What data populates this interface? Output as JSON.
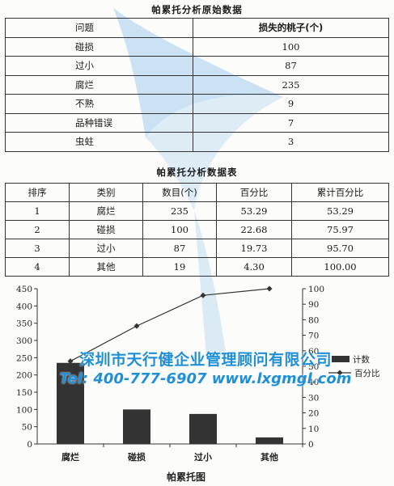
{
  "raw": {
    "title": "帕累托分析原始数据",
    "headers": [
      "问题",
      "损失的桃子(个)"
    ],
    "rows": [
      {
        "problem": "碰损",
        "count": "100"
      },
      {
        "problem": "过小",
        "count": "87"
      },
      {
        "problem": "腐烂",
        "count": "235"
      },
      {
        "problem": "不熟",
        "count": "9"
      },
      {
        "problem": "品种错误",
        "count": "7"
      },
      {
        "problem": "虫蛀",
        "count": "3"
      }
    ]
  },
  "pareto_table": {
    "title": "帕累托分析数据表",
    "headers": [
      "排序",
      "类别",
      "数目(个)",
      "百分比",
      "累计百分比"
    ],
    "rows": [
      [
        "1",
        "腐烂",
        "235",
        "53.29",
        "53.29"
      ],
      [
        "2",
        "碰损",
        "100",
        "22.68",
        "75.97"
      ],
      [
        "3",
        "过小",
        "87",
        "19.73",
        "95.70"
      ],
      [
        "4",
        "其他",
        "19",
        "4.30",
        "100.00"
      ]
    ]
  },
  "chart_data": {
    "type": "bar",
    "title": "帕累托图",
    "categories": [
      "腐烂",
      "碰损",
      "过小",
      "其他"
    ],
    "series": [
      {
        "name": "计数",
        "type": "bar",
        "axis": "left",
        "values": [
          235,
          100,
          87,
          19
        ],
        "color": "#333333"
      },
      {
        "name": "百分比",
        "type": "line",
        "axis": "right",
        "values": [
          53.29,
          75.97,
          95.7,
          100.0
        ],
        "color": "#333333"
      }
    ],
    "ylim": [
      0,
      450
    ],
    "y_ticks": [
      0,
      50,
      100,
      150,
      200,
      250,
      300,
      350,
      400,
      450
    ],
    "y2lim": [
      0,
      100
    ],
    "y2_ticks": [
      0,
      10,
      20,
      30,
      40,
      50,
      60,
      70,
      80,
      90,
      100
    ],
    "legend_position": "right",
    "grid": false
  },
  "watermark": {
    "line1": "深圳市天行健企业管理顾问有限公司",
    "line2": "Tel: 400-777-6907 www.lxgmgl.com",
    "color": "#1f8fd8"
  }
}
